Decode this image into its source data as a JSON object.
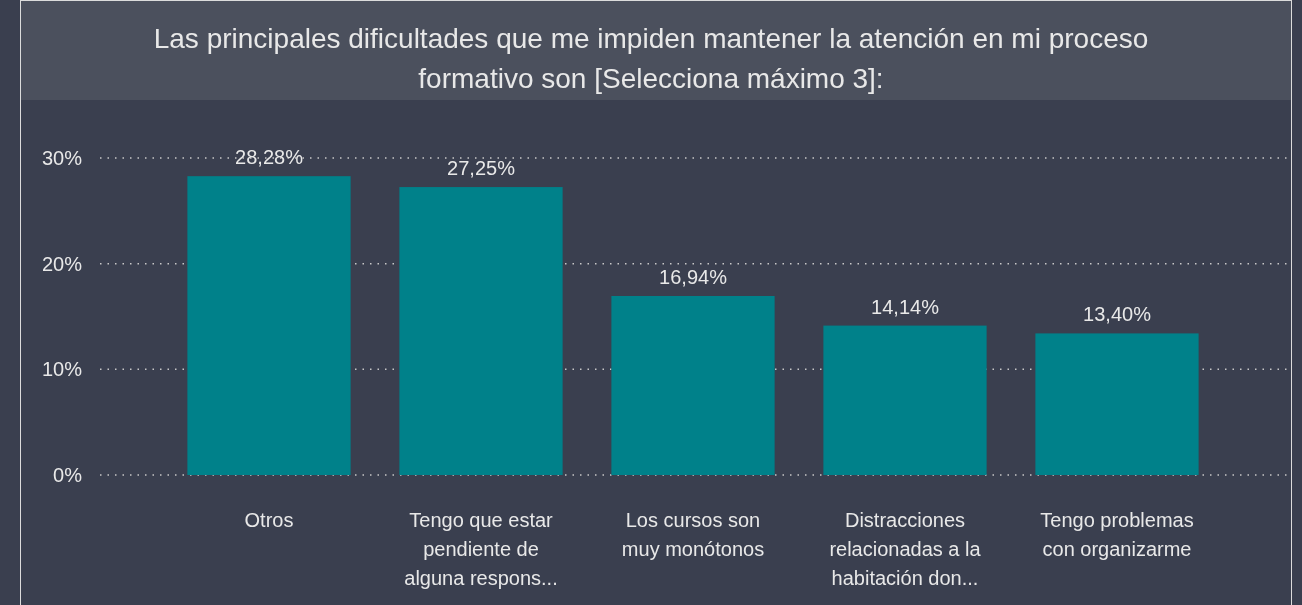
{
  "chart_data": {
    "type": "bar",
    "title": "Las principales dificultades que me impiden mantener la atención en mi proceso formativo son [Selecciona máximo 3]:",
    "categories": [
      "Otros",
      "Tengo que estar pendiente de alguna respons...",
      "Los cursos son muy monótonos",
      "Distracciones relacionadas a la habitación don...",
      "Tengo problemas con organizarme"
    ],
    "values": [
      28.28,
      27.25,
      16.94,
      14.14,
      13.4
    ],
    "value_labels": [
      "28,28%",
      "27,25%",
      "16,94%",
      "14,14%",
      "13,40%"
    ],
    "color": "#00818a",
    "ylim": [
      0,
      30
    ],
    "yticks": [
      {
        "value": 0,
        "label": "0%"
      },
      {
        "value": 10,
        "label": "10%"
      },
      {
        "value": 20,
        "label": "20%"
      },
      {
        "value": 30,
        "label": "30%"
      }
    ],
    "grid": "y"
  }
}
